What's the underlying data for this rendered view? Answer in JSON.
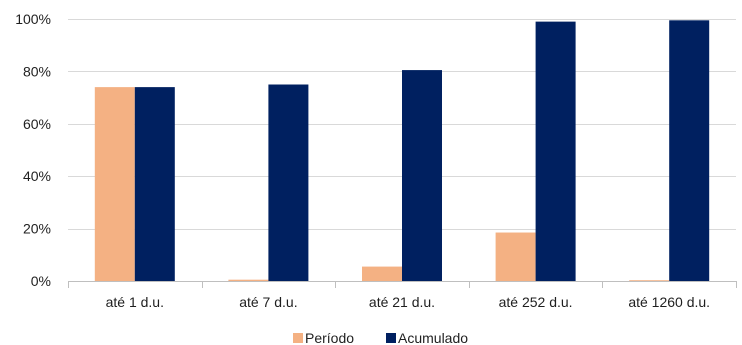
{
  "chart_data": {
    "type": "bar",
    "categories": [
      "até 1 d.u.",
      "até 7 d.u.",
      "até 21 d.u.",
      "até 252 d.u.",
      "até 1260 d.u."
    ],
    "series": [
      {
        "name": "Período",
        "color": "#F4B183",
        "values": [
          74,
          0.5,
          5.5,
          18.5,
          0.3
        ]
      },
      {
        "name": "Acumulado",
        "color": "#002060",
        "values": [
          74,
          75,
          80.5,
          99,
          99.5
        ]
      }
    ],
    "ylim": [
      0,
      100
    ],
    "yticks": [
      0,
      20,
      40,
      60,
      80,
      100
    ],
    "ytick_labels": [
      "0%",
      "20%",
      "40%",
      "60%",
      "80%",
      "100%"
    ],
    "grid": true,
    "legend_position": "bottom-center"
  }
}
